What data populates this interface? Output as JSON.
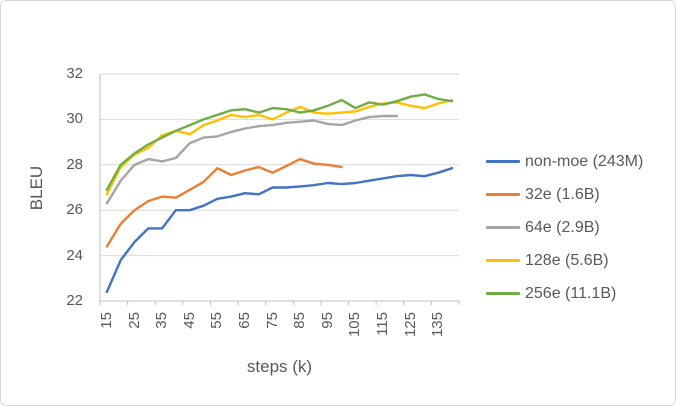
{
  "chart_data": {
    "type": "line",
    "title": "",
    "xlabel": "steps (k)",
    "ylabel": "BLEU",
    "ylim": [
      22,
      32
    ],
    "xtick_labels": [
      "15",
      "25",
      "35",
      "45",
      "55",
      "65",
      "75",
      "85",
      "95",
      "105",
      "115",
      "125",
      "135"
    ],
    "ytick_labels": [
      "22",
      "24",
      "26",
      "28",
      "30",
      "32"
    ],
    "grid": "horizontal",
    "legend_position": "right",
    "axis_color": "#BFBFBF",
    "gridline_color": "#D9D9D9",
    "text_color": "#595959",
    "series": [
      {
        "name": "non-moe (243M)",
        "color": "#4472C4",
        "steps": [
          15,
          20,
          25,
          30,
          35,
          40,
          45,
          50,
          55,
          60,
          65,
          70,
          75,
          80,
          85,
          90,
          95,
          100,
          105,
          110,
          115,
          120,
          125,
          130,
          135,
          140
        ],
        "bleu": [
          22.4,
          23.8,
          24.6,
          25.2,
          25.2,
          26.0,
          26.0,
          26.2,
          26.5,
          26.6,
          26.75,
          26.7,
          27.0,
          27.0,
          27.05,
          27.1,
          27.2,
          27.15,
          27.2,
          27.3,
          27.4,
          27.5,
          27.55,
          27.5,
          27.65,
          27.85
        ]
      },
      {
        "name": "32e (1.6B)",
        "color": "#ED7D31",
        "steps": [
          15,
          20,
          25,
          30,
          35,
          40,
          45,
          50,
          55,
          60,
          65,
          70,
          75,
          80,
          85,
          90,
          95,
          100
        ],
        "bleu": [
          24.4,
          25.4,
          26.0,
          26.4,
          26.6,
          26.55,
          26.9,
          27.25,
          27.85,
          27.55,
          27.75,
          27.9,
          27.65,
          27.95,
          28.25,
          28.05,
          28.0,
          27.9
        ]
      },
      {
        "name": "64e (2.9B)",
        "color": "#A5A5A5",
        "steps": [
          15,
          20,
          25,
          30,
          35,
          40,
          45,
          50,
          55,
          60,
          65,
          70,
          75,
          80,
          85,
          90,
          95,
          100,
          105,
          110,
          115,
          120
        ],
        "bleu": [
          26.3,
          27.3,
          28.0,
          28.25,
          28.15,
          28.3,
          28.95,
          29.2,
          29.25,
          29.45,
          29.6,
          29.7,
          29.75,
          29.85,
          29.9,
          29.95,
          29.8,
          29.75,
          29.95,
          30.1,
          30.15,
          30.15
        ]
      },
      {
        "name": "128e (5.6B)",
        "color": "#FFC000",
        "steps": [
          15,
          20,
          25,
          30,
          35,
          40,
          45,
          50,
          55,
          60,
          65,
          70,
          75,
          80,
          85,
          90,
          95,
          100,
          105,
          110,
          115,
          120,
          125,
          130,
          135,
          140
        ],
        "bleu": [
          26.7,
          27.9,
          28.45,
          28.75,
          29.3,
          29.5,
          29.35,
          29.75,
          29.95,
          30.2,
          30.1,
          30.2,
          30.0,
          30.3,
          30.55,
          30.3,
          30.25,
          30.3,
          30.35,
          30.55,
          30.7,
          30.75,
          30.6,
          30.5,
          30.7,
          30.85
        ]
      },
      {
        "name": "256e (11.1B)",
        "color": "#70AD47",
        "steps": [
          15,
          20,
          25,
          30,
          35,
          40,
          45,
          50,
          55,
          60,
          65,
          70,
          75,
          80,
          85,
          90,
          95,
          100,
          105,
          110,
          115,
          120,
          125,
          130,
          135,
          140
        ],
        "bleu": [
          26.9,
          28.0,
          28.5,
          28.9,
          29.2,
          29.5,
          29.75,
          30.0,
          30.2,
          30.4,
          30.45,
          30.3,
          30.5,
          30.45,
          30.3,
          30.4,
          30.6,
          30.85,
          30.5,
          30.75,
          30.65,
          30.8,
          31.0,
          31.1,
          30.9,
          30.8
        ]
      }
    ]
  }
}
